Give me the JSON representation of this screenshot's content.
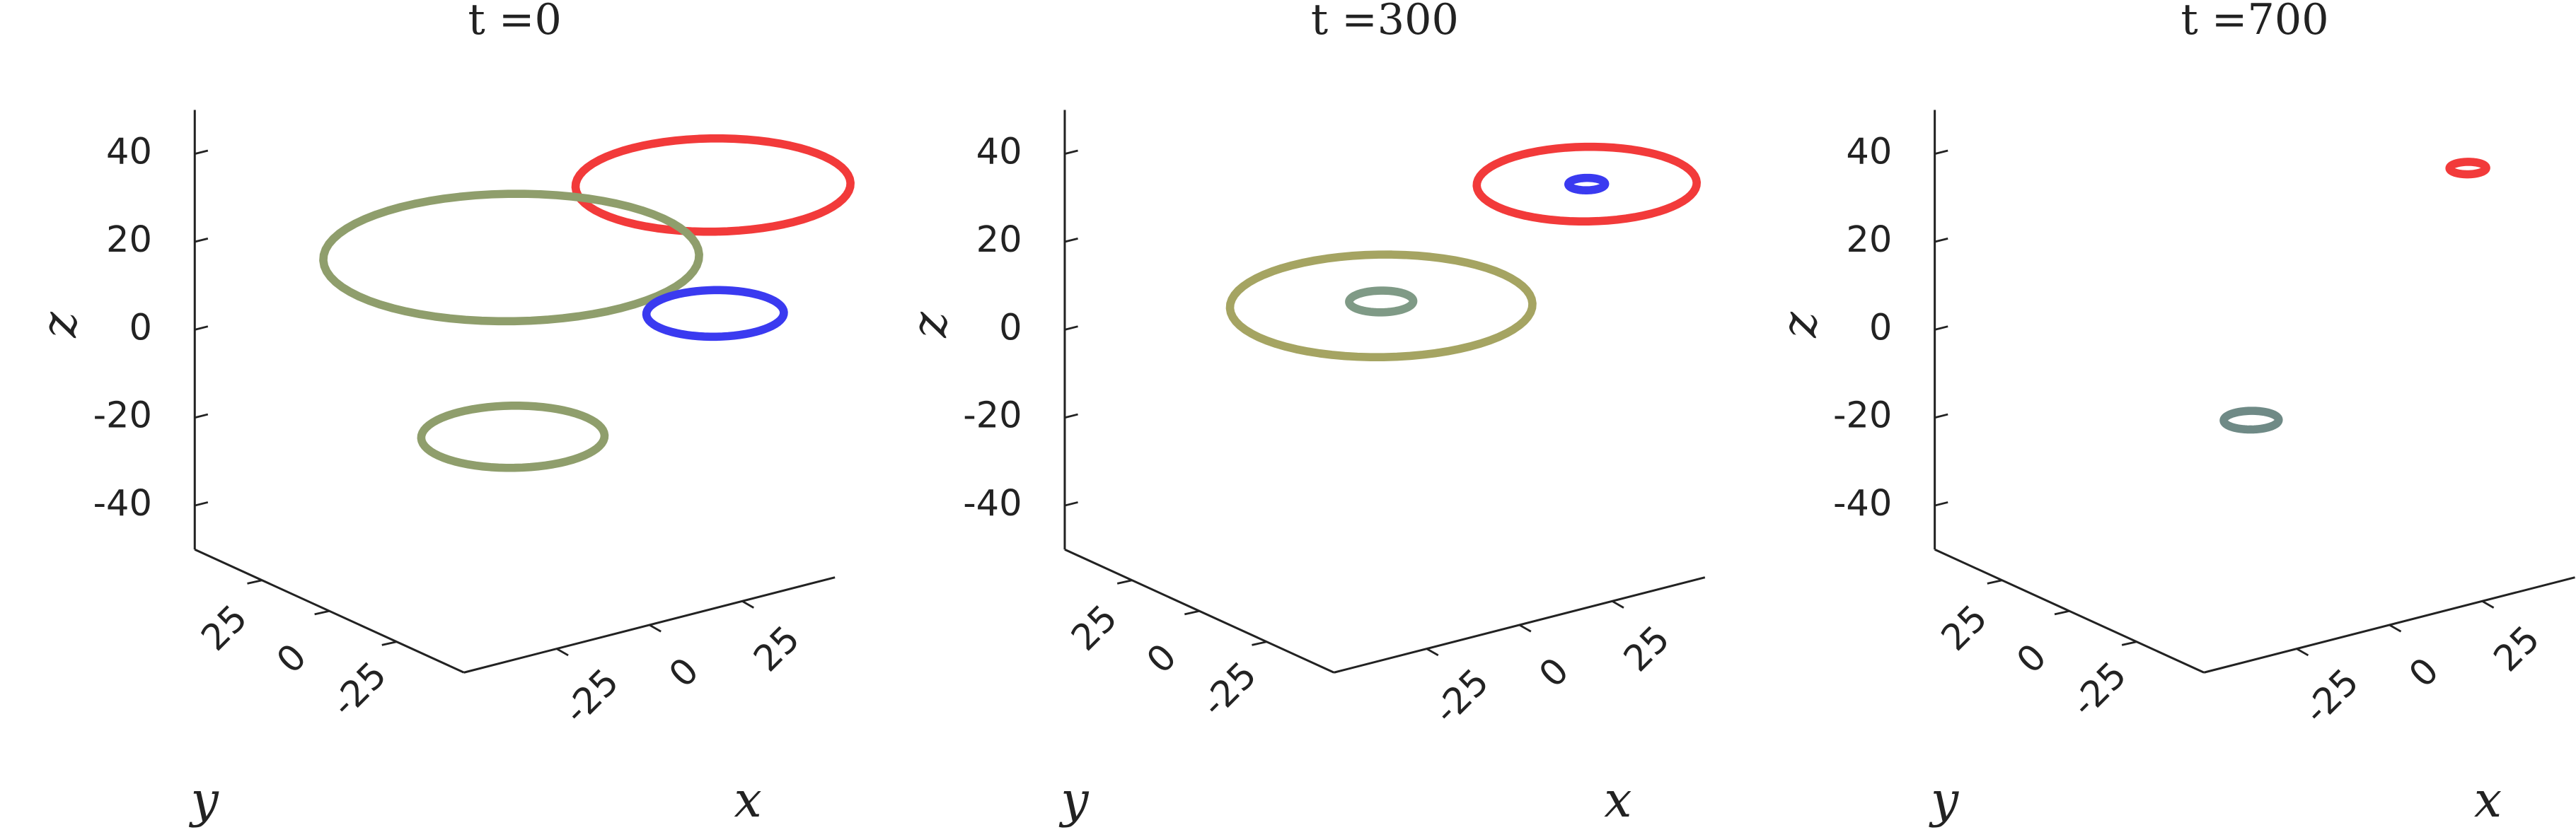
{
  "chart_data": [
    {
      "type": "ring3d",
      "title": "t =0",
      "xlabel": "x",
      "ylabel": "y",
      "zlabel": "z",
      "xlim": [
        -50,
        50
      ],
      "ylim": [
        -50,
        50
      ],
      "zlim": [
        -50,
        50
      ],
      "xticks": [
        -25,
        0,
        25
      ],
      "yticks": [
        -25,
        0,
        25
      ],
      "zticks": [
        -40,
        -20,
        0,
        20,
        40
      ],
      "rings": [
        {
          "x": 36,
          "y": -24,
          "z": 35,
          "r": 30,
          "color": "#f23a3a"
        },
        {
          "x": 7,
          "y": 11,
          "z": 15,
          "r": 41,
          "color": "#8f9e6c"
        },
        {
          "x": 46,
          "y": -11,
          "z": 0,
          "r": 15,
          "color": "#3a3af0"
        },
        {
          "x": 6,
          "y": 9,
          "z": -25,
          "r": 20,
          "color": "#8f9e6c"
        }
      ]
    },
    {
      "type": "ring3d",
      "title": "t =300",
      "xlabel": "x",
      "ylabel": "y",
      "zlabel": "z",
      "xlim": [
        -50,
        50
      ],
      "ylim": [
        -50,
        50
      ],
      "zlim": [
        -50,
        50
      ],
      "xticks": [
        -25,
        0,
        25
      ],
      "yticks": [
        -25,
        0,
        25
      ],
      "zticks": [
        -40,
        -20,
        0,
        20,
        40
      ],
      "rings": [
        {
          "x": 37,
          "y": -24,
          "z": 35,
          "r": 24,
          "color": "#f23a3a"
        },
        {
          "x": 37,
          "y": -24,
          "z": 35,
          "r": 4,
          "color": "#3a3af0"
        },
        {
          "x": 7,
          "y": 11,
          "z": 4,
          "r": 33,
          "color": "#a5a462"
        },
        {
          "x": 7,
          "y": 11,
          "z": 5,
          "r": 7,
          "color": "#7f9a86"
        }
      ]
    },
    {
      "type": "ring3d",
      "title": "t =700",
      "xlabel": "x",
      "ylabel": "y",
      "zlabel": "z",
      "xlim": [
        -50,
        50
      ],
      "ylim": [
        -50,
        50
      ],
      "zlim": [
        -50,
        50
      ],
      "xticks": [
        -25,
        0,
        25
      ],
      "yticks": [
        -25,
        0,
        25
      ],
      "zticks": [
        -40,
        -20,
        0,
        20,
        40
      ],
      "rings": [
        {
          "x": 40,
          "y": -24,
          "z": 38,
          "r": 4,
          "color": "#f23a3a"
        },
        {
          "x": 7,
          "y": 11,
          "z": -22,
          "r": 6,
          "color": "#6f8a86"
        }
      ]
    }
  ]
}
